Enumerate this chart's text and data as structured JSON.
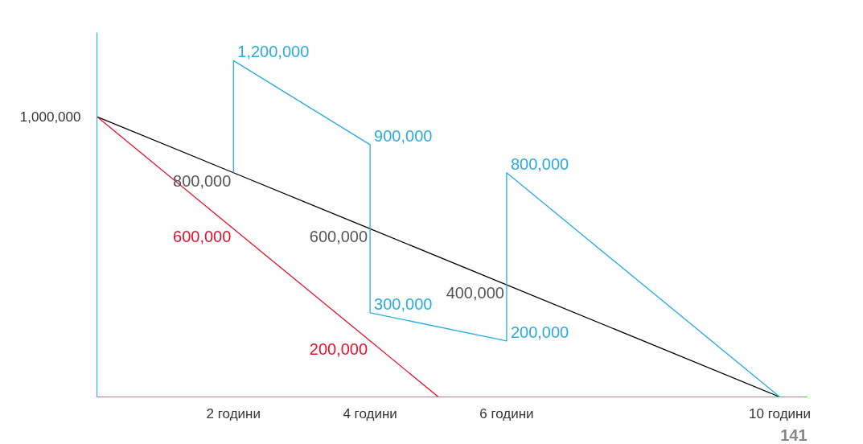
{
  "chart_data": {
    "type": "line",
    "xlim": [
      0,
      10.4
    ],
    "ylim": [
      0,
      1300000
    ],
    "xticks": [
      {
        "value": 2,
        "label": "2 години"
      },
      {
        "value": 4,
        "label": "4 години"
      },
      {
        "value": 6,
        "label": "6 години"
      },
      {
        "value": 10,
        "label": "10 години"
      }
    ],
    "grid": false,
    "marker": "none",
    "line_style": "solid",
    "series": [
      {
        "color": "#000000",
        "x": [
          0,
          2,
          4,
          6,
          10
        ],
        "values": [
          1000000,
          800000,
          600000,
          400000,
          0
        ],
        "value_labels": [
          null,
          "800,000",
          "600,000",
          "400,000",
          null
        ]
      },
      {
        "color": "#e8112d",
        "x": [
          0,
          2,
          4,
          5
        ],
        "values": [
          1000000,
          600000,
          200000,
          0
        ],
        "value_labels": [
          null,
          "600,000",
          "200,000",
          null
        ]
      },
      {
        "color": "#29abe2",
        "x": [
          2,
          2,
          4,
          4,
          6,
          6,
          10
        ],
        "values": [
          800000,
          1200000,
          900000,
          300000,
          200000,
          800000,
          0
        ],
        "value_labels": [
          null,
          "1,200,000",
          "900,000",
          "300,000",
          "200,000",
          "800,000",
          null
        ]
      }
    ],
    "annotations": [
      {
        "text": "1,000,000",
        "x": 0,
        "y": 1000000
      },
      "141"
    ]
  }
}
